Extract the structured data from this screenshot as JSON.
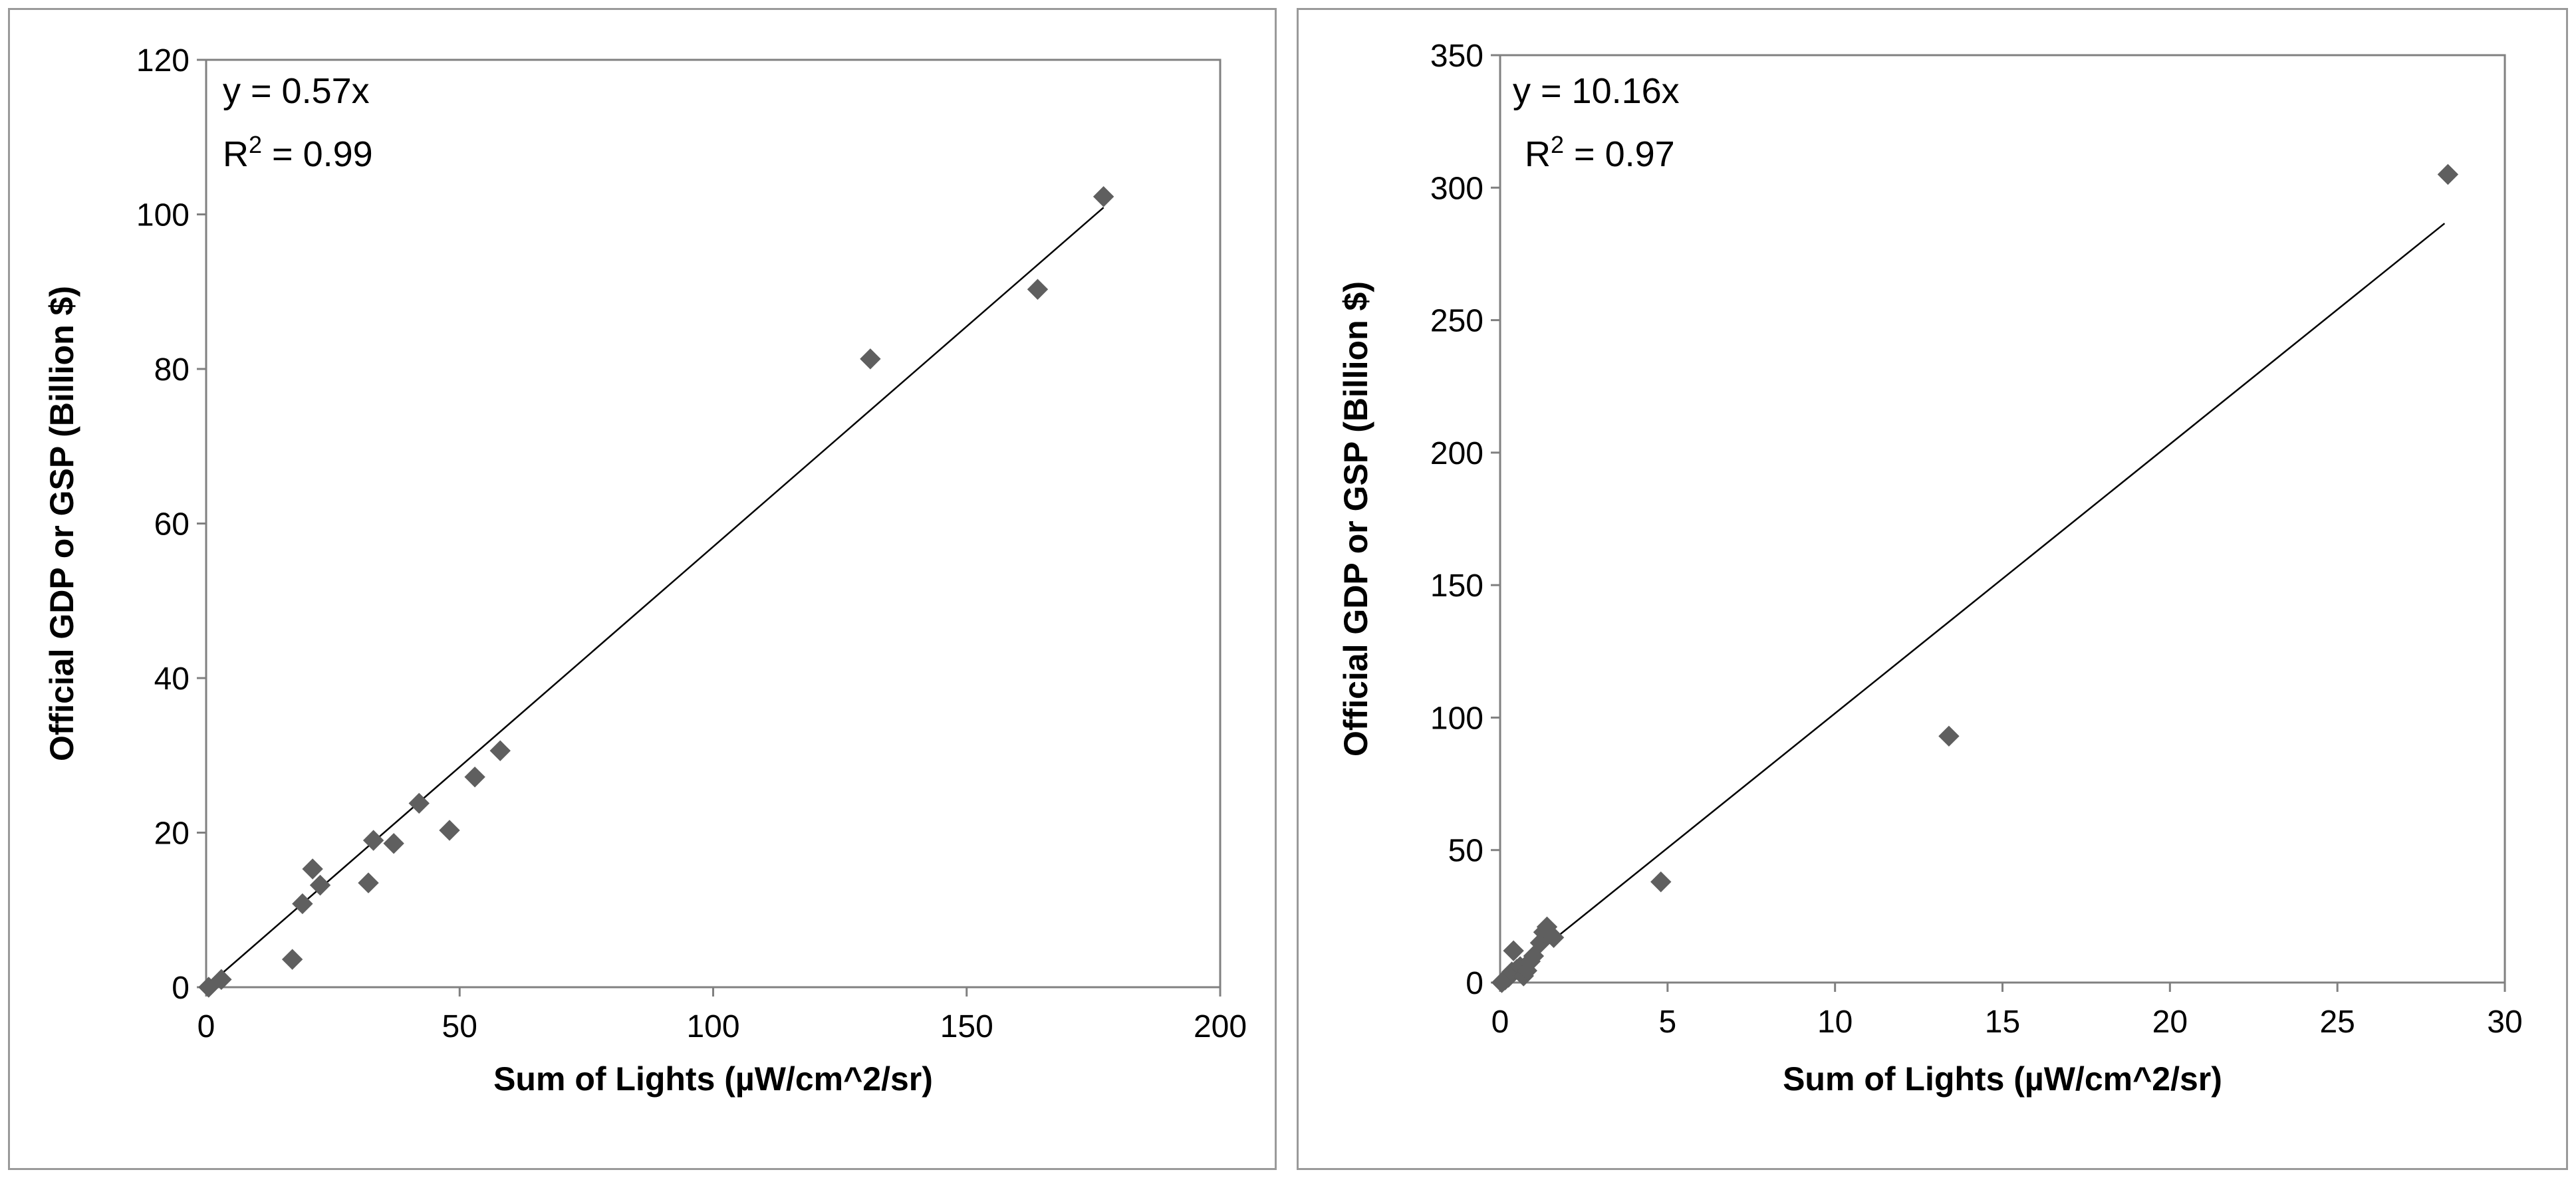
{
  "chart_data": [
    {
      "type": "scatter",
      "xlabel": "Sum of Lights (µW/cm^2/sr)",
      "ylabel": "Official GDP or GSP (Billion $)",
      "xlim": [
        0,
        200
      ],
      "ylim": [
        0,
        120
      ],
      "xticks": [
        "0",
        "50",
        "100",
        "150",
        "200"
      ],
      "yticks": [
        "0",
        "20",
        "40",
        "60",
        "80",
        "100",
        "120"
      ],
      "grid": false,
      "trendline": {
        "slope": 0.57,
        "x_range": [
          0,
          177
        ]
      },
      "annotation": {
        "equation": "y = 0.57x",
        "r2_prefix": "R",
        "r2_sup": "2",
        "r2_value": " = 0.99"
      },
      "marker": "diamond",
      "marker_color": "#5f5f5f",
      "points": [
        {
          "x": 0.5,
          "y": 0
        },
        {
          "x": 3,
          "y": 1
        },
        {
          "x": 17,
          "y": 3.6
        },
        {
          "x": 19,
          "y": 10.8
        },
        {
          "x": 21,
          "y": 15.3
        },
        {
          "x": 22.5,
          "y": 13.2
        },
        {
          "x": 32,
          "y": 13.5
        },
        {
          "x": 33,
          "y": 19
        },
        {
          "x": 37,
          "y": 18.6
        },
        {
          "x": 42,
          "y": 23.8
        },
        {
          "x": 48,
          "y": 20.3
        },
        {
          "x": 53,
          "y": 27.2
        },
        {
          "x": 58,
          "y": 30.6
        },
        {
          "x": 131,
          "y": 81.3
        },
        {
          "x": 164,
          "y": 90.3
        },
        {
          "x": 177,
          "y": 102.3
        }
      ]
    },
    {
      "type": "scatter",
      "xlabel": "Sum of Lights (µW/cm^2/sr)",
      "ylabel": "Official GDP or GSP (Billion $)",
      "xlim": [
        0,
        30
      ],
      "ylim": [
        0,
        350
      ],
      "xticks": [
        "0",
        "5",
        "10",
        "15",
        "20",
        "25",
        "30"
      ],
      "yticks": [
        "0",
        "50",
        "100",
        "150",
        "200",
        "250",
        "300",
        "350"
      ],
      "grid": false,
      "trendline": {
        "slope": 10.16,
        "x_range": [
          0,
          28.2
        ]
      },
      "annotation": {
        "equation": "y = 10.16x",
        "r2_prefix": "R",
        "r2_sup": "2",
        "r2_value": " = 0.97"
      },
      "marker": "diamond",
      "marker_color": "#5f5f5f",
      "points": [
        {
          "x": 0.05,
          "y": 0
        },
        {
          "x": 0.15,
          "y": 1
        },
        {
          "x": 0.25,
          "y": 2
        },
        {
          "x": 0.35,
          "y": 4
        },
        {
          "x": 0.4,
          "y": 12
        },
        {
          "x": 0.5,
          "y": 5
        },
        {
          "x": 0.6,
          "y": 6
        },
        {
          "x": 0.7,
          "y": 2.5
        },
        {
          "x": 0.8,
          "y": 4.5
        },
        {
          "x": 0.9,
          "y": 8
        },
        {
          "x": 1.0,
          "y": 10
        },
        {
          "x": 1.2,
          "y": 15
        },
        {
          "x": 1.3,
          "y": 19
        },
        {
          "x": 1.4,
          "y": 21
        },
        {
          "x": 1.6,
          "y": 17
        },
        {
          "x": 4.8,
          "y": 38
        },
        {
          "x": 13.4,
          "y": 93
        },
        {
          "x": 28.3,
          "y": 305
        }
      ]
    }
  ]
}
